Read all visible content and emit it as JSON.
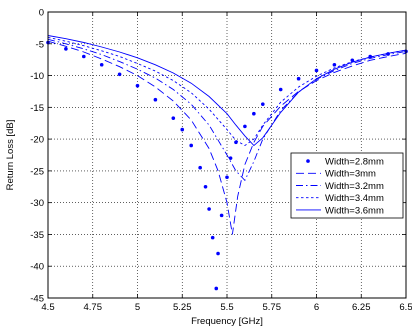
{
  "chart_data": {
    "type": "line",
    "title": "",
    "xlabel": "Frequency [GHz]",
    "ylabel": "Return Loss [dB]",
    "xlim": [
      4.5,
      6.5
    ],
    "ylim": [
      -45,
      0
    ],
    "xticks": [
      4.5,
      4.75,
      5,
      5.25,
      5.5,
      5.75,
      6,
      6.25,
      6.5
    ],
    "xtick_labels": [
      "4.5",
      "4.75",
      "5",
      "5.25",
      "5.5",
      "5.75",
      "6",
      "6.25",
      "6.5"
    ],
    "yticks": [
      0,
      -5,
      -10,
      -15,
      -20,
      -25,
      -30,
      -35,
      -40,
      -45
    ],
    "ytick_labels": [
      "0",
      "-5",
      "-10",
      "-15",
      "-20",
      "-25",
      "-30",
      "-35",
      "-40",
      "-45"
    ],
    "grid": true,
    "legend_position": "center-right",
    "color": "#0000ff",
    "series": [
      {
        "name": "Width=2.8mm",
        "style": "dots",
        "x": [
          4.5,
          4.6,
          4.7,
          4.8,
          4.9,
          5.0,
          5.1,
          5.2,
          5.25,
          5.3,
          5.35,
          5.38,
          5.4,
          5.42,
          5.44,
          5.45,
          5.47,
          5.5,
          5.52,
          5.55,
          5.6,
          5.65,
          5.7,
          5.8,
          5.9,
          6.0,
          6.1,
          6.2,
          6.3,
          6.4,
          6.5
        ],
        "y": [
          -4.8,
          -5.8,
          -7.0,
          -8.3,
          -9.8,
          -11.6,
          -13.8,
          -16.7,
          -18.5,
          -21.0,
          -24.5,
          -27.5,
          -31.0,
          -35.5,
          -43.5,
          -38.0,
          -32.0,
          -26.0,
          -23.0,
          -20.5,
          -18.0,
          -16.0,
          -14.5,
          -12.2,
          -10.5,
          -9.2,
          -8.3,
          -7.6,
          -7.0,
          -6.6,
          -6.2
        ]
      },
      {
        "name": "Width=3mm",
        "style": "dash",
        "x": [
          4.5,
          4.6,
          4.7,
          4.8,
          4.9,
          5.0,
          5.1,
          5.2,
          5.3,
          5.4,
          5.45,
          5.5,
          5.53,
          5.56,
          5.6,
          5.65,
          5.7,
          5.8,
          5.9,
          6.0,
          6.1,
          6.2,
          6.3,
          6.4,
          6.5
        ],
        "y": [
          -4.6,
          -5.4,
          -6.3,
          -7.4,
          -8.6,
          -10.0,
          -11.8,
          -14.0,
          -17.0,
          -21.5,
          -25.0,
          -30.0,
          -35.0,
          -29.0,
          -24.0,
          -20.5,
          -18.0,
          -14.8,
          -12.5,
          -10.8,
          -9.5,
          -8.5,
          -7.6,
          -7.0,
          -6.5
        ]
      },
      {
        "name": "Width=3.2mm",
        "style": "dashdot",
        "x": [
          4.5,
          4.6,
          4.7,
          4.8,
          4.9,
          5.0,
          5.1,
          5.2,
          5.3,
          5.4,
          5.5,
          5.55,
          5.6,
          5.65,
          5.7,
          5.8,
          5.9,
          6.0,
          6.1,
          6.2,
          6.3,
          6.4,
          6.5
        ],
        "y": [
          -4.3,
          -5.0,
          -5.8,
          -6.7,
          -7.8,
          -9.0,
          -10.4,
          -12.2,
          -14.5,
          -17.8,
          -22.5,
          -25.0,
          -26.5,
          -23.5,
          -20.0,
          -15.5,
          -12.6,
          -10.6,
          -9.2,
          -8.1,
          -7.3,
          -6.7,
          -6.2
        ]
      },
      {
        "name": "Width=3.4mm",
        "style": "dotted",
        "x": [
          4.5,
          4.6,
          4.7,
          4.8,
          4.9,
          5.0,
          5.1,
          5.2,
          5.3,
          5.4,
          5.5,
          5.55,
          5.6,
          5.65,
          5.7,
          5.8,
          5.9,
          6.0,
          6.1,
          6.2,
          6.3,
          6.4,
          6.5
        ],
        "y": [
          -4.0,
          -4.6,
          -5.3,
          -6.1,
          -7.0,
          -8.1,
          -9.3,
          -10.8,
          -12.7,
          -15.3,
          -18.5,
          -20.2,
          -21.0,
          -20.0,
          -17.8,
          -14.2,
          -11.8,
          -10.1,
          -8.8,
          -7.8,
          -7.1,
          -6.5,
          -6.0
        ]
      },
      {
        "name": "Width=3.6mm",
        "style": "solid",
        "x": [
          4.5,
          4.6,
          4.7,
          4.8,
          4.9,
          5.0,
          5.1,
          5.2,
          5.3,
          5.4,
          5.5,
          5.55,
          5.6,
          5.65,
          5.7,
          5.8,
          5.9,
          6.0,
          6.1,
          6.2,
          6.3,
          6.4,
          6.5
        ],
        "y": [
          -3.7,
          -4.2,
          -4.8,
          -5.5,
          -6.3,
          -7.2,
          -8.3,
          -9.6,
          -11.2,
          -13.3,
          -16.0,
          -17.8,
          -19.5,
          -21.0,
          -19.8,
          -15.8,
          -12.6,
          -10.5,
          -9.0,
          -7.9,
          -7.1,
          -6.5,
          -6.0
        ]
      }
    ]
  }
}
